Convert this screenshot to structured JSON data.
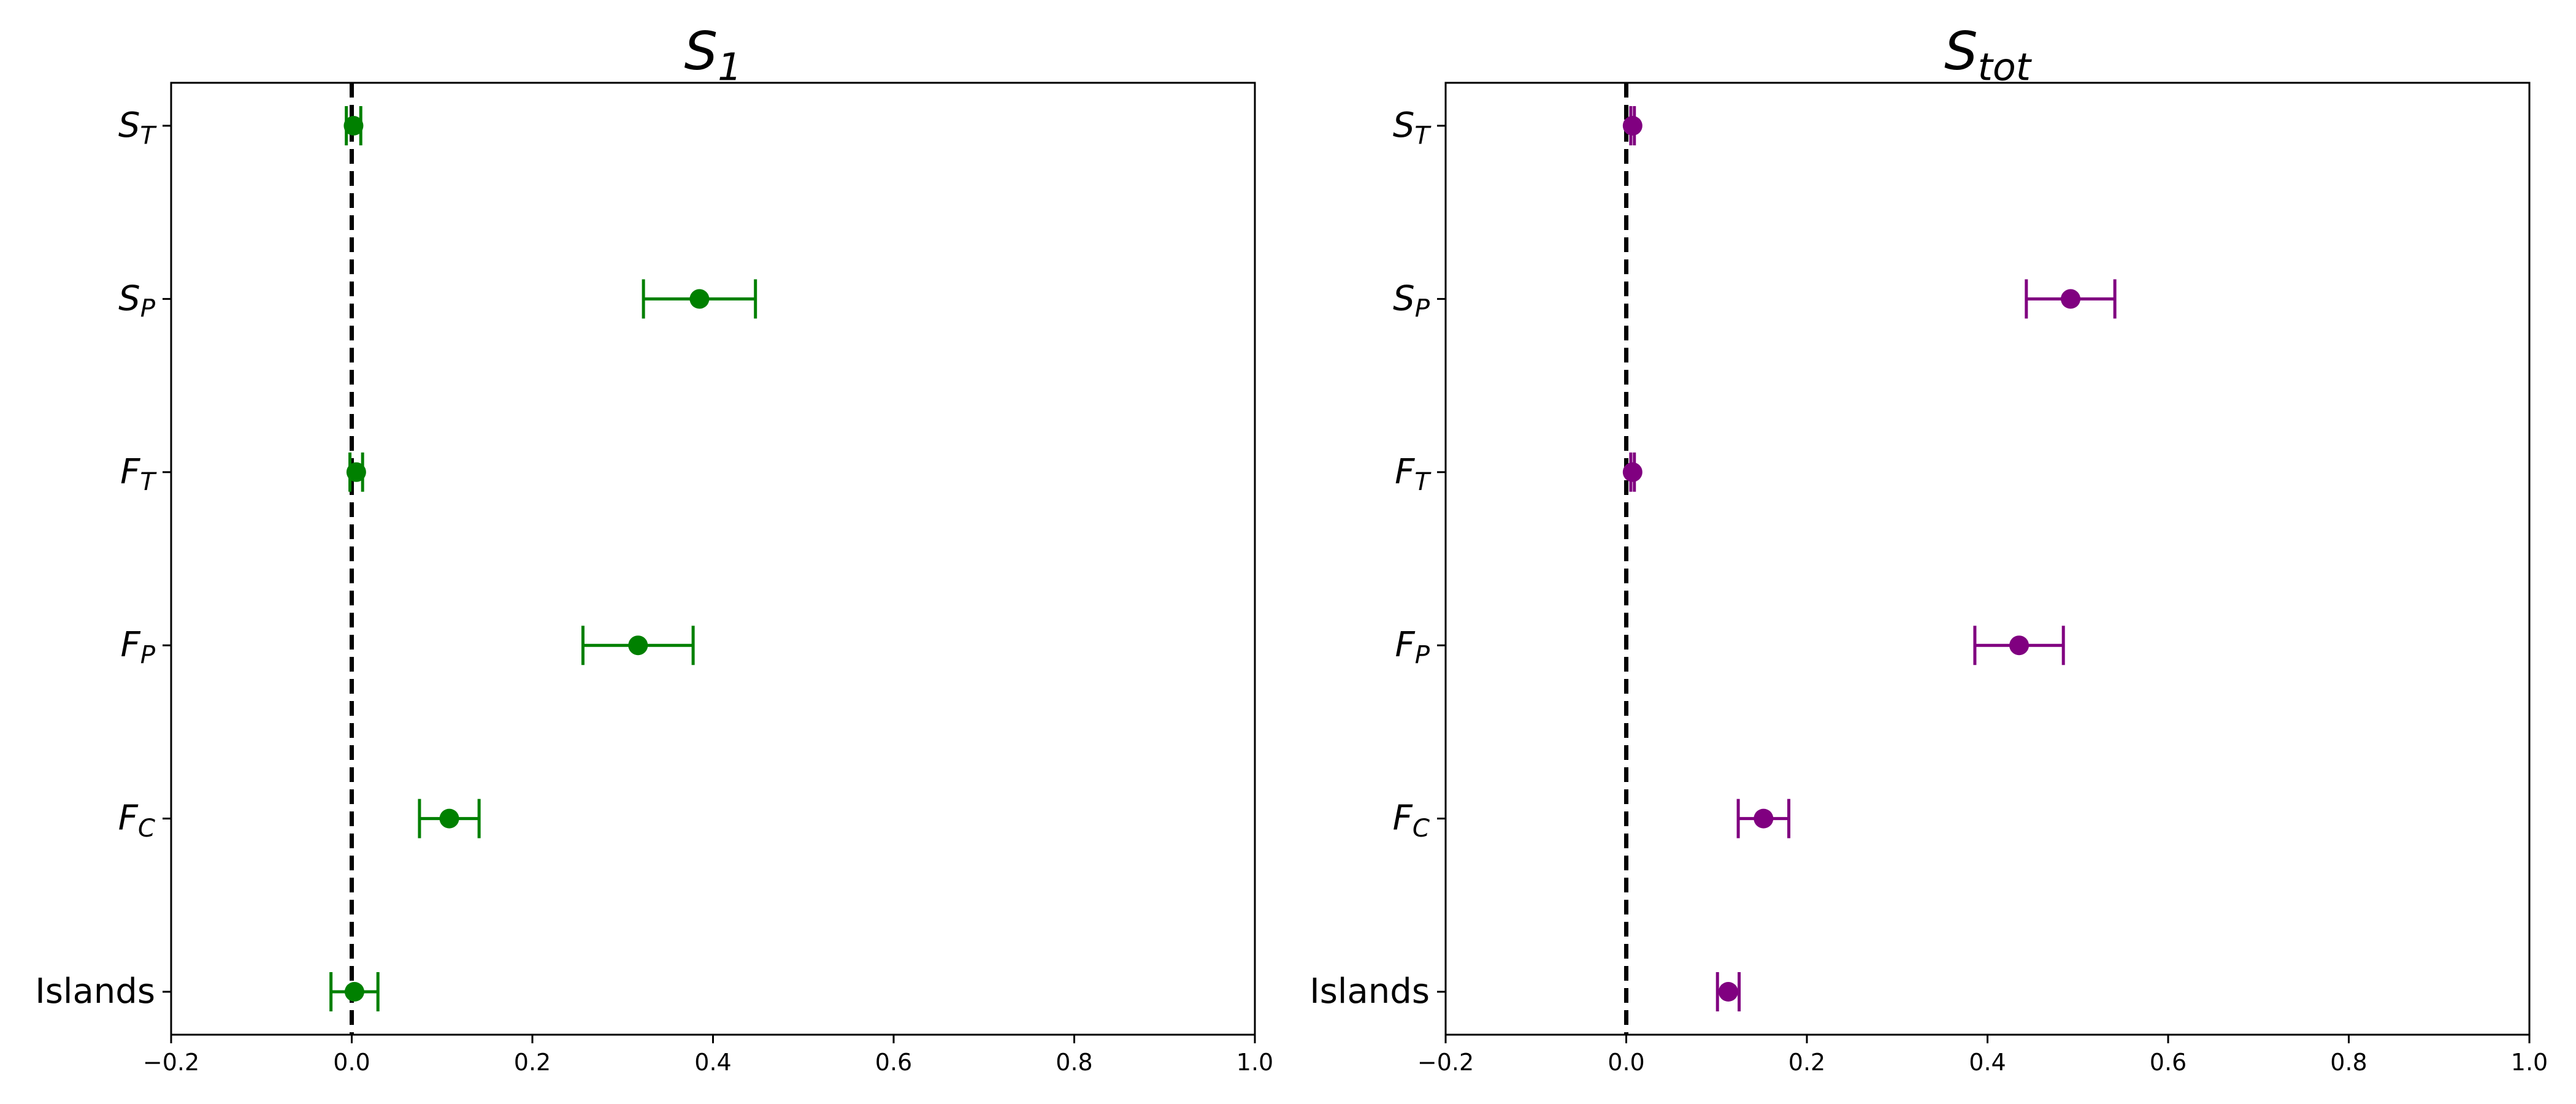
{
  "chart_data": [
    {
      "type": "scatter",
      "title_base": "S",
      "title_sub": "1",
      "color": "#008000",
      "xlim": [
        -0.2,
        1.0
      ],
      "xticks": [
        "−0.2",
        "0.0",
        "0.2",
        "0.4",
        "0.6",
        "0.8",
        "1.0"
      ],
      "xtick_values": [
        -0.2,
        0.0,
        0.2,
        0.4,
        0.6,
        0.8,
        1.0
      ],
      "categories": [
        {
          "base": "S",
          "sub": "T"
        },
        {
          "base": "S",
          "sub": "P"
        },
        {
          "base": "F",
          "sub": "T"
        },
        {
          "base": "F",
          "sub": "P"
        },
        {
          "base": "F",
          "sub": "C"
        },
        {
          "base": "Islands",
          "sub": ""
        }
      ],
      "values": [
        0.002,
        0.385,
        0.005,
        0.317,
        0.108,
        0.003
      ],
      "errors": [
        0.008,
        0.062,
        0.007,
        0.061,
        0.033,
        0.026
      ],
      "reference_line_x": 0.0
    },
    {
      "type": "scatter",
      "title_base": "S",
      "title_sub": "tot",
      "color": "#800080",
      "xlim": [
        -0.2,
        1.0
      ],
      "xticks": [
        "−0.2",
        "0.0",
        "0.2",
        "0.4",
        "0.6",
        "0.8",
        "1.0"
      ],
      "xtick_values": [
        -0.2,
        0.0,
        0.2,
        0.4,
        0.6,
        0.8,
        1.0
      ],
      "categories": [
        {
          "base": "S",
          "sub": "T"
        },
        {
          "base": "S",
          "sub": "P"
        },
        {
          "base": "F",
          "sub": "T"
        },
        {
          "base": "F",
          "sub": "P"
        },
        {
          "base": "F",
          "sub": "C"
        },
        {
          "base": "Islands",
          "sub": ""
        }
      ],
      "values": [
        0.007,
        0.492,
        0.007,
        0.435,
        0.152,
        0.113
      ],
      "errors": [
        0.002,
        0.049,
        0.002,
        0.049,
        0.028,
        0.012
      ],
      "reference_line_x": 0.0
    }
  ]
}
